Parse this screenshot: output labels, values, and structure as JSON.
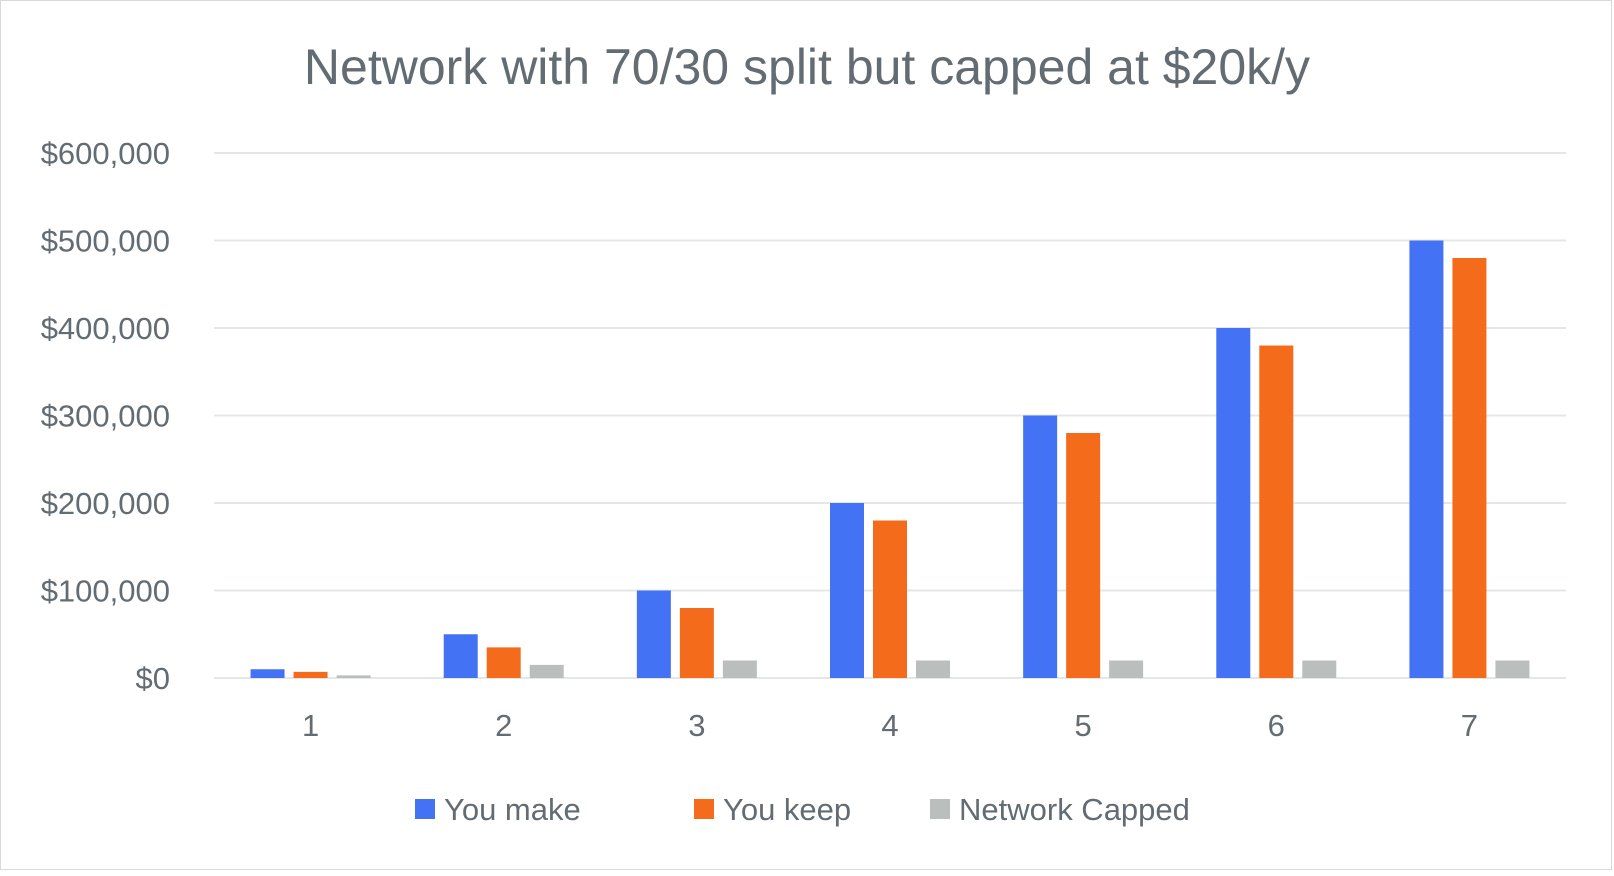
{
  "chart_data": {
    "type": "bar",
    "title": "Network with 70/30 split but capped at $20k/y",
    "xlabel": "",
    "ylabel": "",
    "categories": [
      "1",
      "2",
      "3",
      "4",
      "5",
      "6",
      "7"
    ],
    "series": [
      {
        "name": "You make",
        "color": "#4472f5",
        "values": [
          10000,
          50000,
          100000,
          200000,
          300000,
          400000,
          500000
        ]
      },
      {
        "name": "You keep",
        "color": "#f46c1b",
        "values": [
          7000,
          35000,
          80000,
          180000,
          280000,
          380000,
          480000
        ]
      },
      {
        "name": "Network Capped",
        "color": "#babfbe",
        "values": [
          3000,
          15000,
          20000,
          20000,
          20000,
          20000,
          20000
        ]
      }
    ],
    "y_ticks": [
      "$0",
      "$100,000",
      "$200,000",
      "$300,000",
      "$400,000",
      "$500,000",
      "$600,000"
    ],
    "ylim": [
      0,
      600000
    ],
    "grid": true,
    "legend_position": "bottom"
  },
  "colors": {
    "gridline": "#e4e7e8",
    "text": "#636c72",
    "frame": "#d9d9d9"
  }
}
